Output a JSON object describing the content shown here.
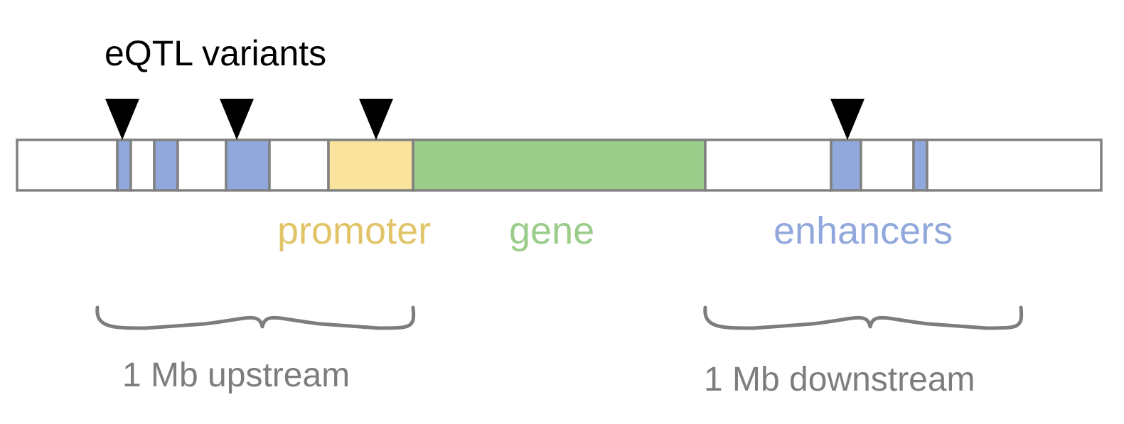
{
  "title": "eQTL variants",
  "colors": {
    "promoter": "#fae39c",
    "gene": "#9bcd8a",
    "enhancer": "#91a8dc",
    "empty": "#ffffff",
    "variant_marker": "#000000"
  },
  "legend": {
    "promoter": "promoter",
    "gene": "gene",
    "enhancers": "enhancers"
  },
  "ranges": {
    "upstream": "1 Mb upstream",
    "downstream": "1 Mb downstream"
  },
  "track": {
    "segments": [
      {
        "name": "region-empty",
        "type": "empty"
      },
      {
        "name": "enhancer-1",
        "type": "enhancer"
      },
      {
        "name": "region-empty",
        "type": "empty"
      },
      {
        "name": "enhancer-2",
        "type": "enhancer"
      },
      {
        "name": "region-empty",
        "type": "empty"
      },
      {
        "name": "enhancer-3",
        "type": "enhancer"
      },
      {
        "name": "region-empty",
        "type": "empty"
      },
      {
        "name": "promoter-region",
        "type": "promoter"
      },
      {
        "name": "gene-body",
        "type": "gene"
      },
      {
        "name": "region-empty",
        "type": "empty"
      },
      {
        "name": "enhancer-4",
        "type": "enhancer"
      },
      {
        "name": "region-empty",
        "type": "empty"
      },
      {
        "name": "enhancer-5",
        "type": "enhancer"
      },
      {
        "name": "region-empty",
        "type": "empty"
      }
    ],
    "variant_count": 4
  }
}
